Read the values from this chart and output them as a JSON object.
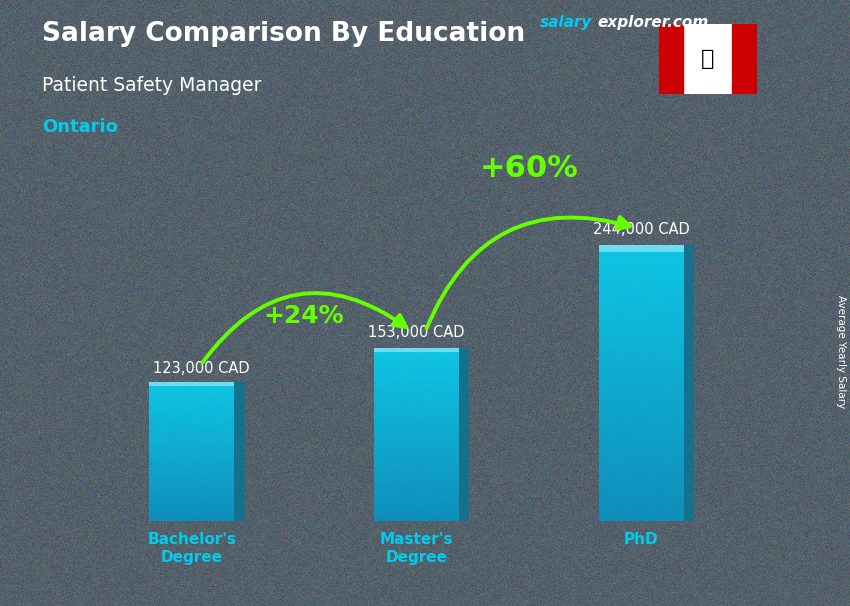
{
  "title": "Salary Comparison By Education",
  "subtitle": "Patient Safety Manager",
  "location": "Ontario",
  "watermark_salary": "salary",
  "watermark_explorer": "explorer.com",
  "ylabel": "Average Yearly Salary",
  "categories": [
    "Bachelor's\nDegree",
    "Master's\nDegree",
    "PhD"
  ],
  "values": [
    123000,
    153000,
    244000
  ],
  "labels": [
    "123,000 CAD",
    "153,000 CAD",
    "244,000 CAD"
  ],
  "bar_color_main": "#00ccee",
  "bar_color_dark": "#0099bb",
  "bar_color_side": "#007799",
  "bar_alpha": 0.82,
  "bg_color": "#4a5a6a",
  "title_color": "#ffffff",
  "subtitle_color": "#ffffff",
  "location_color": "#00ccee",
  "label_color": "#ffffff",
  "arrow_color": "#66ff00",
  "watermark_salary_color": "#00ccee",
  "watermark_explorer_color": "#ffffff",
  "tick_label_color": "#00ccee",
  "percent_changes": [
    "+24%",
    "+60%"
  ],
  "ylim": [
    0,
    300000
  ],
  "bar_width": 0.38,
  "bar_positions": [
    0,
    1,
    2
  ]
}
